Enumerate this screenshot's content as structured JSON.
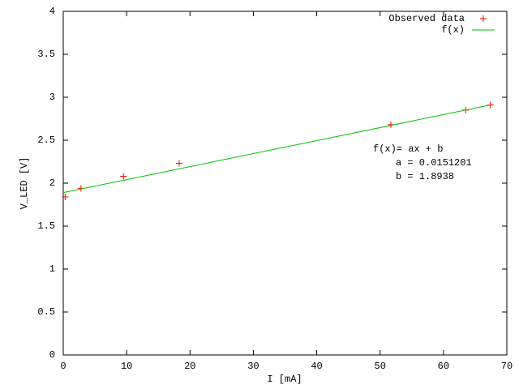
{
  "chart_data": {
    "type": "scatter",
    "xlabel": "I [mA]",
    "ylabel": "V_LED [V]",
    "xlim": [
      0,
      70
    ],
    "ylim": [
      0,
      4
    ],
    "xticks": [
      0,
      10,
      20,
      30,
      40,
      50,
      60,
      70
    ],
    "yticks": [
      0,
      0.5,
      1,
      1.5,
      2,
      2.5,
      3,
      3.5,
      4
    ],
    "legend": "upper right",
    "series": [
      {
        "name": "Observed data",
        "color": "#ff0000",
        "type": "scatter",
        "x": [
          0.3,
          2.8,
          9.5,
          18.3,
          51.7,
          63.5,
          67.4
        ],
        "values": [
          1.84,
          1.94,
          2.08,
          2.23,
          2.68,
          2.85,
          2.91
        ]
      },
      {
        "name": "f(x)",
        "color": "#00c000",
        "type": "line",
        "x": [
          0,
          67.4
        ],
        "values": [
          1.89,
          2.91
        ]
      }
    ],
    "annotations": [
      "f(x)= ax + b",
      "a = 0.0151201",
      "b = 1.8938"
    ]
  }
}
